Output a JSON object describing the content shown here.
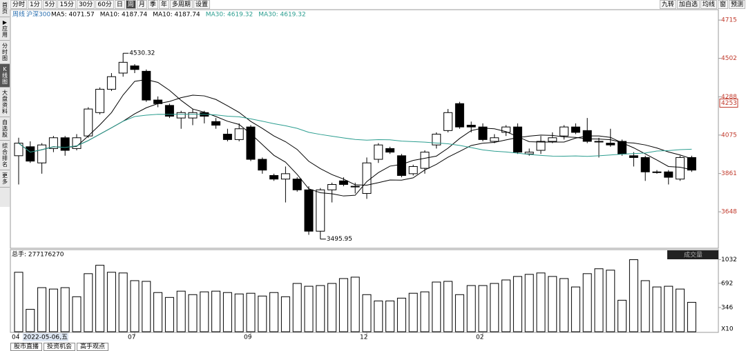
{
  "toolbar": {
    "left": [
      "分时",
      "1分",
      "5分",
      "15分",
      "30分",
      "60分",
      "日",
      "周",
      "月",
      "季",
      "年",
      "多周期",
      "设置"
    ],
    "active": "周",
    "right": [
      "九转",
      "加自选",
      "均线",
      "窗",
      "预测"
    ]
  },
  "sidebar": [
    "首页",
    "▶应用",
    "分时图",
    "K线图",
    "大盘资料",
    "自选股",
    "综合排名",
    "更多"
  ],
  "sidebar_active": "K线图",
  "legend": {
    "period": "周线",
    "index": "沪深300",
    "items": [
      {
        "label": "MA5: 4071.57",
        "period": 5,
        "color": "#000000"
      },
      {
        "label": "MA10: 4187.74",
        "period": 10,
        "color": "#000000"
      },
      {
        "label": "MA10: 4187.74",
        "period": 10,
        "color": "#000000"
      },
      {
        "label": "MA30: 4619.32",
        "period": 30,
        "color": "#2a9d8f"
      },
      {
        "label": "MA30: 4619.32",
        "period": 30,
        "color": "#2a9d8f"
      }
    ]
  },
  "chart_data": [
    {
      "type": "candlestick",
      "up_color": "#ffffff",
      "down_color": "#000000",
      "categories": [
        "04",
        "2022-05-06,五",
        null,
        null,
        null,
        null,
        null,
        null,
        null,
        null,
        "07",
        null,
        null,
        null,
        null,
        null,
        null,
        null,
        null,
        null,
        "09",
        null,
        null,
        null,
        null,
        null,
        null,
        null,
        null,
        null,
        "12",
        null,
        null,
        null,
        null,
        null,
        null,
        null,
        null,
        null,
        "02",
        null,
        null,
        null,
        null,
        null,
        null,
        null,
        null,
        null,
        null,
        null,
        null,
        null,
        null,
        null,
        null,
        null,
        null
      ],
      "open": [
        3960,
        4010,
        3920,
        4000,
        4060,
        4000,
        4070,
        4200,
        4330,
        4420,
        4460,
        4430,
        4270,
        4240,
        4170,
        4170,
        4200,
        4150,
        4080,
        4050,
        4120,
        3940,
        3850,
        3830,
        3830,
        3770,
        3540,
        3770,
        3820,
        3790,
        3750,
        3940,
        4000,
        3960,
        3860,
        3890,
        4020,
        4100,
        4250,
        4130,
        4120,
        4040,
        4090,
        4120,
        3970,
        3990,
        4040,
        4070,
        4120,
        4100,
        4040,
        4030,
        4040,
        3960,
        3950,
        3870,
        3870,
        3830,
        3950
      ],
      "high": [
        4060,
        4040,
        4030,
        4070,
        4070,
        4080,
        4230,
        4340,
        4420,
        4530.32,
        4470,
        4440,
        4290,
        4250,
        4210,
        4220,
        4210,
        4170,
        4110,
        4140,
        4130,
        3950,
        3860,
        3900,
        3840,
        3790,
        3780,
        3810,
        3840,
        3810,
        3950,
        4030,
        4010,
        3970,
        3910,
        3990,
        4090,
        4220,
        4260,
        4150,
        4140,
        4080,
        4130,
        4140,
        4000,
        4070,
        4090,
        4130,
        4140,
        4170,
        4060,
        4110,
        4050,
        3980,
        3960,
        3880,
        3880,
        3960,
        3960
      ],
      "low": [
        3800,
        3920,
        3860,
        3980,
        3960,
        3990,
        4060,
        4190,
        4320,
        4400,
        4420,
        4260,
        4230,
        4170,
        4110,
        4130,
        4140,
        4110,
        4040,
        4040,
        3930,
        3860,
        3820,
        3700,
        3760,
        3520,
        3495.95,
        3700,
        3790,
        3750,
        3720,
        3920,
        3970,
        3840,
        3850,
        3860,
        4000,
        4090,
        4110,
        4090,
        4040,
        4030,
        4070,
        3970,
        3960,
        3970,
        4030,
        4050,
        4080,
        4030,
        3950,
        4010,
        3960,
        3900,
        3820,
        3860,
        3800,
        3820,
        3870
      ],
      "close": [
        4030,
        3930,
        4020,
        4060,
        3990,
        4060,
        4220,
        4330,
        4400,
        4480,
        4440,
        4270,
        4250,
        4180,
        4200,
        4200,
        4180,
        4130,
        4050,
        4110,
        3940,
        3880,
        3830,
        3860,
        3770,
        3540,
        3770,
        3800,
        3800,
        3790,
        3920,
        4020,
        3980,
        3850,
        3900,
        3980,
        4080,
        4200,
        4120,
        4120,
        4050,
        4060,
        4120,
        3980,
        3980,
        4040,
        4060,
        4120,
        4090,
        4040,
        4040,
        4020,
        3970,
        3950,
        3870,
        3870,
        3840,
        3950,
        3880
      ],
      "ylim": [
        3445,
        4773
      ],
      "yticks": [
        3648,
        3861,
        4075,
        4288,
        4502,
        4715
      ],
      "marker": 4253,
      "annotations": [
        {
          "index": 9,
          "value": 4530.32,
          "label": "4530.32"
        },
        {
          "index": 26,
          "value": 3495.95,
          "label": "3495.95"
        }
      ]
    },
    {
      "type": "bar",
      "title": "总手: 277176270",
      "button": "成交量",
      "color": "#000000",
      "values": [
        850,
        320,
        630,
        610,
        630,
        500,
        830,
        950,
        850,
        840,
        730,
        720,
        560,
        490,
        580,
        530,
        570,
        580,
        560,
        540,
        550,
        510,
        560,
        500,
        690,
        650,
        660,
        690,
        760,
        780,
        530,
        440,
        440,
        480,
        550,
        570,
        710,
        720,
        530,
        660,
        660,
        690,
        740,
        790,
        820,
        840,
        790,
        760,
        640,
        830,
        900,
        880,
        450,
        1030,
        730,
        640,
        650,
        610,
        420
      ],
      "ylim": [
        0,
        1075
      ],
      "yticks": [
        346,
        692,
        1032
      ],
      "unit_label": "X10"
    }
  ],
  "footer": [
    "股市直播",
    "投资机会",
    "高手观点"
  ]
}
